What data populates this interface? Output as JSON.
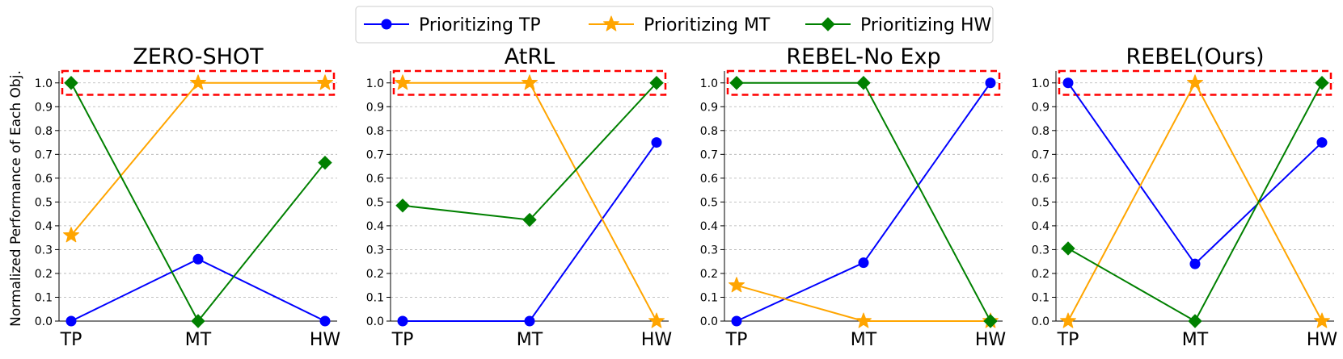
{
  "ylabel": "Normalized Performance of Each Obj.",
  "legend": [
    {
      "label": "Prioritizing TP",
      "color": "#0000ff",
      "marker": "circle"
    },
    {
      "label": "Prioritizing MT",
      "color": "#ffa500",
      "marker": "star"
    },
    {
      "label": "Prioritizing HW",
      "color": "#008000",
      "marker": "diamond"
    }
  ],
  "highlight_color": "#ff0000",
  "chart_data": [
    {
      "type": "line",
      "title": "ZERO-SHOT",
      "categories": [
        "TP",
        "MT",
        "HW"
      ],
      "ylim": [
        0,
        1.05
      ],
      "yticks": [
        "0.0",
        "0.1",
        "0.2",
        "0.3",
        "0.4",
        "0.5",
        "0.6",
        "0.7",
        "0.8",
        "0.9",
        "1.0"
      ],
      "highlight_band": [
        0.95,
        1.05
      ],
      "series": [
        {
          "name": "Prioritizing TP",
          "values": [
            0.0,
            0.26,
            0.0
          ]
        },
        {
          "name": "Prioritizing MT",
          "values": [
            0.36,
            1.0,
            1.0
          ]
        },
        {
          "name": "Prioritizing HW",
          "values": [
            1.0,
            0.0,
            0.665
          ]
        }
      ]
    },
    {
      "type": "line",
      "title": "AtRL",
      "categories": [
        "TP",
        "MT",
        "HW"
      ],
      "ylim": [
        0,
        1.05
      ],
      "yticks": [
        "0.0",
        "0.1",
        "0.2",
        "0.3",
        "0.4",
        "0.5",
        "0.6",
        "0.7",
        "0.8",
        "0.9",
        "1.0"
      ],
      "highlight_band": [
        0.95,
        1.05
      ],
      "series": [
        {
          "name": "Prioritizing TP",
          "values": [
            0.0,
            0.0,
            0.75
          ]
        },
        {
          "name": "Prioritizing MT",
          "values": [
            1.0,
            1.0,
            0.0
          ]
        },
        {
          "name": "Prioritizing HW",
          "values": [
            0.485,
            0.425,
            1.0
          ]
        }
      ]
    },
    {
      "type": "line",
      "title": "REBEL-No Exp",
      "categories": [
        "TP",
        "MT",
        "HW"
      ],
      "ylim": [
        0,
        1.05
      ],
      "yticks": [
        "0.0",
        "0.1",
        "0.2",
        "0.3",
        "0.4",
        "0.5",
        "0.6",
        "0.7",
        "0.8",
        "0.9",
        "1.0"
      ],
      "highlight_band": [
        0.95,
        1.05
      ],
      "series": [
        {
          "name": "Prioritizing TP",
          "values": [
            0.0,
            0.245,
            1.0
          ]
        },
        {
          "name": "Prioritizing MT",
          "values": [
            0.15,
            0.0,
            0.0
          ]
        },
        {
          "name": "Prioritizing HW",
          "values": [
            1.0,
            1.0,
            0.0
          ]
        }
      ]
    },
    {
      "type": "line",
      "title": "REBEL(Ours)",
      "categories": [
        "TP",
        "MT",
        "HW"
      ],
      "ylim": [
        0,
        1.05
      ],
      "yticks": [
        "0.0",
        "0.1",
        "0.2",
        "0.3",
        "0.4",
        "0.5",
        "0.6",
        "0.7",
        "0.8",
        "0.9",
        "1.0"
      ],
      "highlight_band": [
        0.95,
        1.05
      ],
      "series": [
        {
          "name": "Prioritizing TP",
          "values": [
            1.0,
            0.24,
            0.75
          ]
        },
        {
          "name": "Prioritizing MT",
          "values": [
            0.0,
            1.0,
            0.0
          ]
        },
        {
          "name": "Prioritizing HW",
          "values": [
            0.305,
            0.0,
            1.0
          ]
        }
      ]
    }
  ]
}
